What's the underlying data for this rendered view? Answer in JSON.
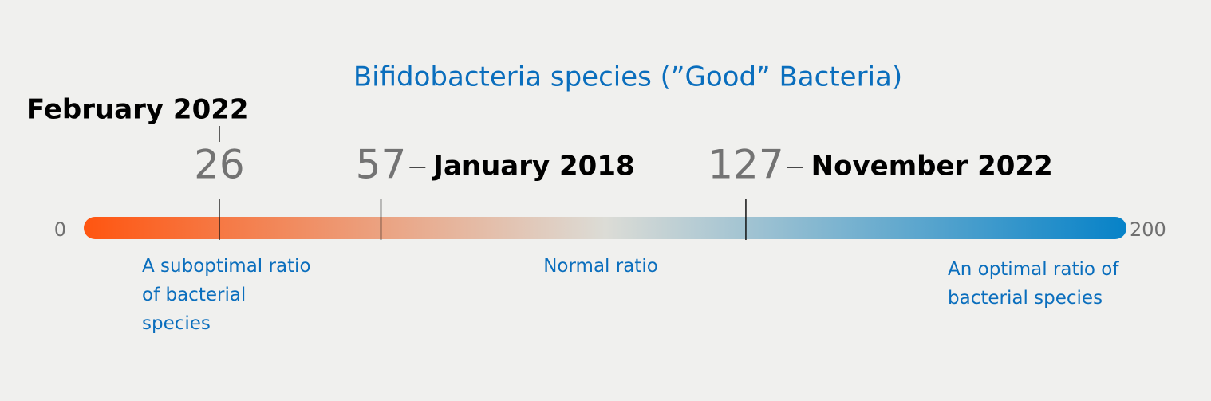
{
  "chart_data": {
    "type": "scale",
    "title": "Bifidobacteria species (”Good” Bacteria)",
    "xlim": [
      0,
      200
    ],
    "xticks": [
      0,
      200
    ],
    "colors": [
      "#ff5510",
      "#dcdcd6",
      "#0682c8"
    ],
    "markers": [
      {
        "value": 26,
        "label": "February 2022"
      },
      {
        "value": 57,
        "label": "January 2018"
      },
      {
        "value": 127,
        "label": "November 2022"
      }
    ],
    "zones": [
      "A suboptimal ratio of bacterial species",
      "Normal ratio",
      "An optimal ratio of bacterial species"
    ]
  }
}
